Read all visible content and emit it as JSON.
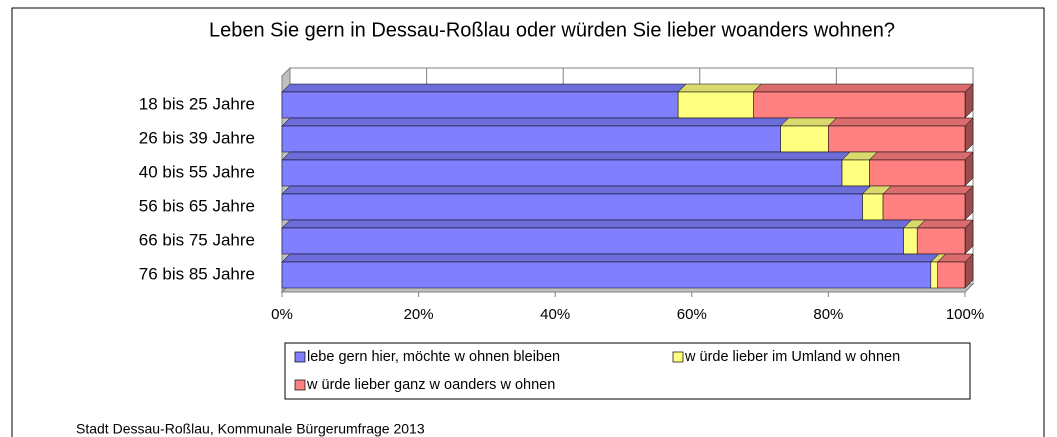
{
  "chart_data": {
    "type": "stacked-bar-horizontal",
    "title": "Leben Sie gern in Dessau-Roßlau oder würden Sie lieber woanders wohnen?",
    "categories": [
      "18 bis 25 Jahre",
      "26 bis 39 Jahre",
      "40 bis 55 Jahre",
      "56 bis 65 Jahre",
      "66 bis 75 Jahre",
      "76 bis 85 Jahre"
    ],
    "series": [
      {
        "name": "lebe gern hier, möchte w ohnen bleiben",
        "color": "#8080ff",
        "values": [
          58,
          73,
          82,
          85,
          91,
          95
        ]
      },
      {
        "name": "w ürde lieber im Umland w ohnen",
        "color": "#ffff80",
        "values": [
          11,
          7,
          4,
          3,
          2,
          1
        ]
      },
      {
        "name": "w ürde lieber ganz w oanders w ohnen",
        "color": "#ff8080",
        "values": [
          31,
          20,
          14,
          12,
          7,
          4
        ]
      }
    ],
    "xlim": [
      0,
      100
    ],
    "xticks": [
      {
        "value": 0,
        "label": "0%"
      },
      {
        "value": 20,
        "label": "20%"
      },
      {
        "value": 40,
        "label": "40%"
      },
      {
        "value": 60,
        "label": "60%"
      },
      {
        "value": 80,
        "label": "80%"
      },
      {
        "value": 100,
        "label": "100%"
      }
    ],
    "grid": true,
    "source": "Stadt Dessau-Roßlau, Kommunale Bürgerumfrage 2013"
  }
}
